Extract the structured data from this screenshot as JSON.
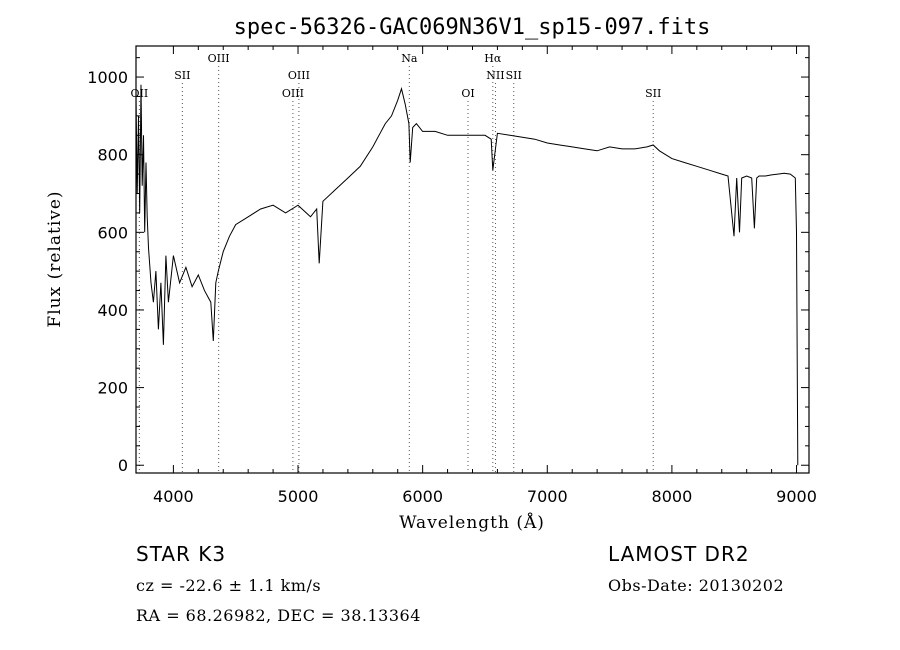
{
  "chart_data": {
    "type": "line",
    "title": "spec-56326-GAC069N36V1_sp15-097.fits",
    "xlabel": "Wavelength (Å)",
    "ylabel": "Flux (relative)",
    "xlim": [
      3700,
      9100
    ],
    "ylim": [
      -20,
      1080
    ],
    "x_ticks": [
      4000,
      5000,
      6000,
      7000,
      8000,
      9000
    ],
    "y_ticks": [
      0,
      200,
      400,
      600,
      800,
      1000
    ],
    "grid": false,
    "series": [
      {
        "x": [
          3700,
          3710,
          3720,
          3730,
          3740,
          3750,
          3760,
          3770,
          3780,
          3790,
          3800,
          3820,
          3840,
          3860,
          3880,
          3900,
          3920,
          3940,
          3960,
          3980,
          4000,
          4050,
          4100,
          4150,
          4200,
          4250,
          4300,
          4320,
          4340,
          4360,
          4400,
          4450,
          4500,
          4600,
          4700,
          4800,
          4900,
          5000,
          5100,
          5150,
          5170,
          5200,
          5300,
          5400,
          5500,
          5600,
          5700,
          5750,
          5800,
          5830,
          5860,
          5890,
          5900,
          5920,
          5950,
          6000,
          6100,
          6200,
          6300,
          6400,
          6500,
          6550,
          6563,
          6600,
          6700,
          6800,
          6900,
          7000,
          7100,
          7200,
          7300,
          7400,
          7500,
          7600,
          7700,
          7800,
          7850,
          7900,
          8000,
          8100,
          8200,
          8300,
          8400,
          8450,
          8498,
          8520,
          8542,
          8560,
          8600,
          8640,
          8662,
          8680,
          8700,
          8750,
          8800,
          8850,
          8900,
          8950,
          8990,
          9000,
          9010
        ],
        "y": [
          950,
          700,
          900,
          650,
          980,
          720,
          850,
          600,
          780,
          640,
          560,
          470,
          420,
          500,
          350,
          470,
          310,
          540,
          420,
          480,
          540,
          470,
          510,
          460,
          490,
          450,
          420,
          320,
          470,
          500,
          550,
          590,
          620,
          640,
          660,
          670,
          650,
          670,
          640,
          660,
          520,
          680,
          710,
          740,
          770,
          820,
          880,
          900,
          940,
          970,
          930,
          880,
          780,
          870,
          880,
          860,
          860,
          850,
          850,
          850,
          850,
          840,
          760,
          855,
          850,
          845,
          840,
          830,
          825,
          820,
          815,
          810,
          820,
          815,
          815,
          820,
          825,
          810,
          790,
          780,
          770,
          760,
          750,
          745,
          590,
          740,
          600,
          740,
          745,
          740,
          610,
          740,
          745,
          745,
          748,
          750,
          752,
          750,
          740,
          600,
          0
        ]
      }
    ],
    "line_markers": [
      {
        "label": "OII",
        "wavelength": 3727,
        "row": "lower"
      },
      {
        "label": "SII",
        "wavelength": 4072,
        "row": "middle"
      },
      {
        "label": "OIII",
        "wavelength": 4363,
        "row": "top"
      },
      {
        "label": "OIII",
        "wavelength": 4959,
        "row": "lower"
      },
      {
        "label": "OIII",
        "wavelength": 5007,
        "row": "middle"
      },
      {
        "label": "Na",
        "wavelength": 5893,
        "row": "top"
      },
      {
        "label": "OI",
        "wavelength": 6364,
        "row": "lower"
      },
      {
        "label": "Hα",
        "wavelength": 6563,
        "row": "top"
      },
      {
        "label": "NII",
        "wavelength": 6584,
        "row": "middle"
      },
      {
        "label": "SII",
        "wavelength": 6731,
        "row": "middle"
      },
      {
        "label": "SII",
        "wavelength": 7850,
        "row": "lower"
      }
    ]
  },
  "info": {
    "classification": "STAR    K3",
    "survey": "LAMOST DR2",
    "cz": "cz = -22.6 ± 1.1 km/s",
    "obs_date": "Obs-Date: 20130202",
    "coords": "RA =  68.26982, DEC =  38.13364"
  }
}
